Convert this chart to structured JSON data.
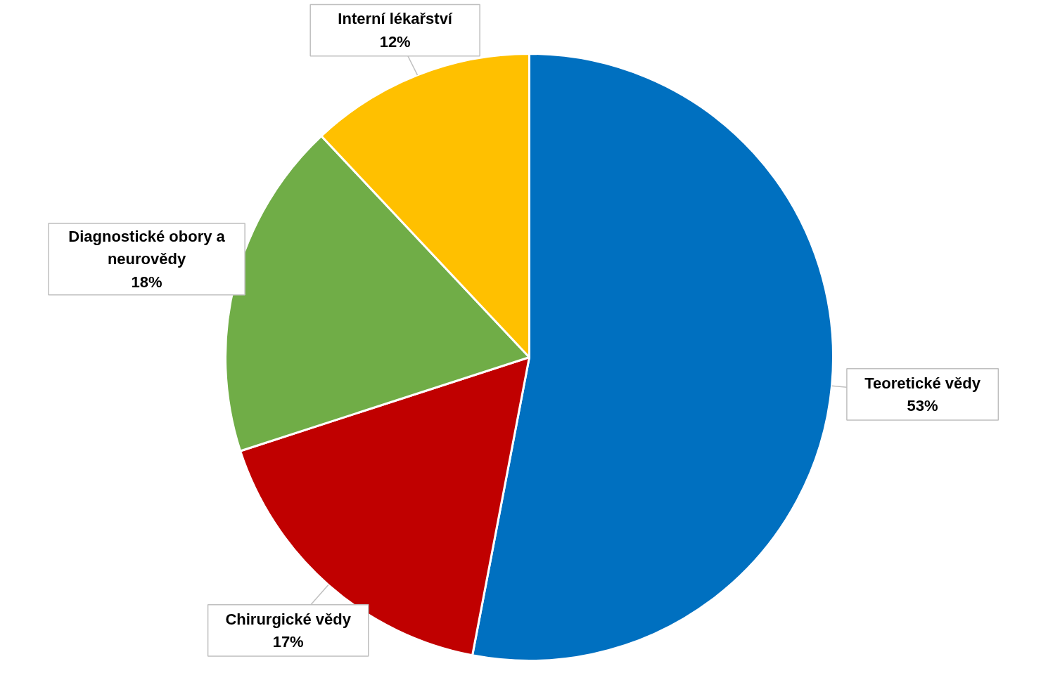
{
  "chart_data": {
    "type": "pie",
    "categories": [
      "Teoretické vědy",
      "Chirurgické vědy",
      "Diagnostické obory a neurovědy",
      "Interní lékařství"
    ],
    "values": [
      53,
      17,
      18,
      12
    ],
    "colors": [
      "#0070c0",
      "#c00000",
      "#70ad47",
      "#ffc000"
    ],
    "value_labels": [
      "53%",
      "17%",
      "18%",
      "12%"
    ],
    "legend": false
  }
}
